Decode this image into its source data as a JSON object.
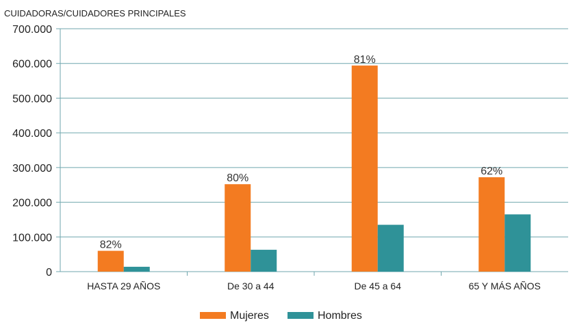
{
  "chart_data": {
    "type": "bar",
    "title": "CUIDADORAS/CUIDADORES PRINCIPALES",
    "categories": [
      "HASTA 29 AÑOS",
      "De 30 a 44",
      "De 45 a 64",
      "65 Y MÁS AÑOS"
    ],
    "series": [
      {
        "name": "Mujeres",
        "color": "#f37b21",
        "values": [
          60000,
          252000,
          594000,
          272000
        ]
      },
      {
        "name": "Hombres",
        "color": "#2f9298",
        "values": [
          14000,
          63000,
          135000,
          165000
        ]
      }
    ],
    "annotations": [
      "82%",
      "80%",
      "81%",
      "62%"
    ],
    "ylim": [
      0,
      700000
    ],
    "yticks": [
      "0",
      "100.000",
      "200.000",
      "300.000",
      "400.000",
      "500.000",
      "600.000",
      "700.000"
    ],
    "grid": true,
    "legend_position": "bottom",
    "axis_color": "#6fa6ad"
  }
}
